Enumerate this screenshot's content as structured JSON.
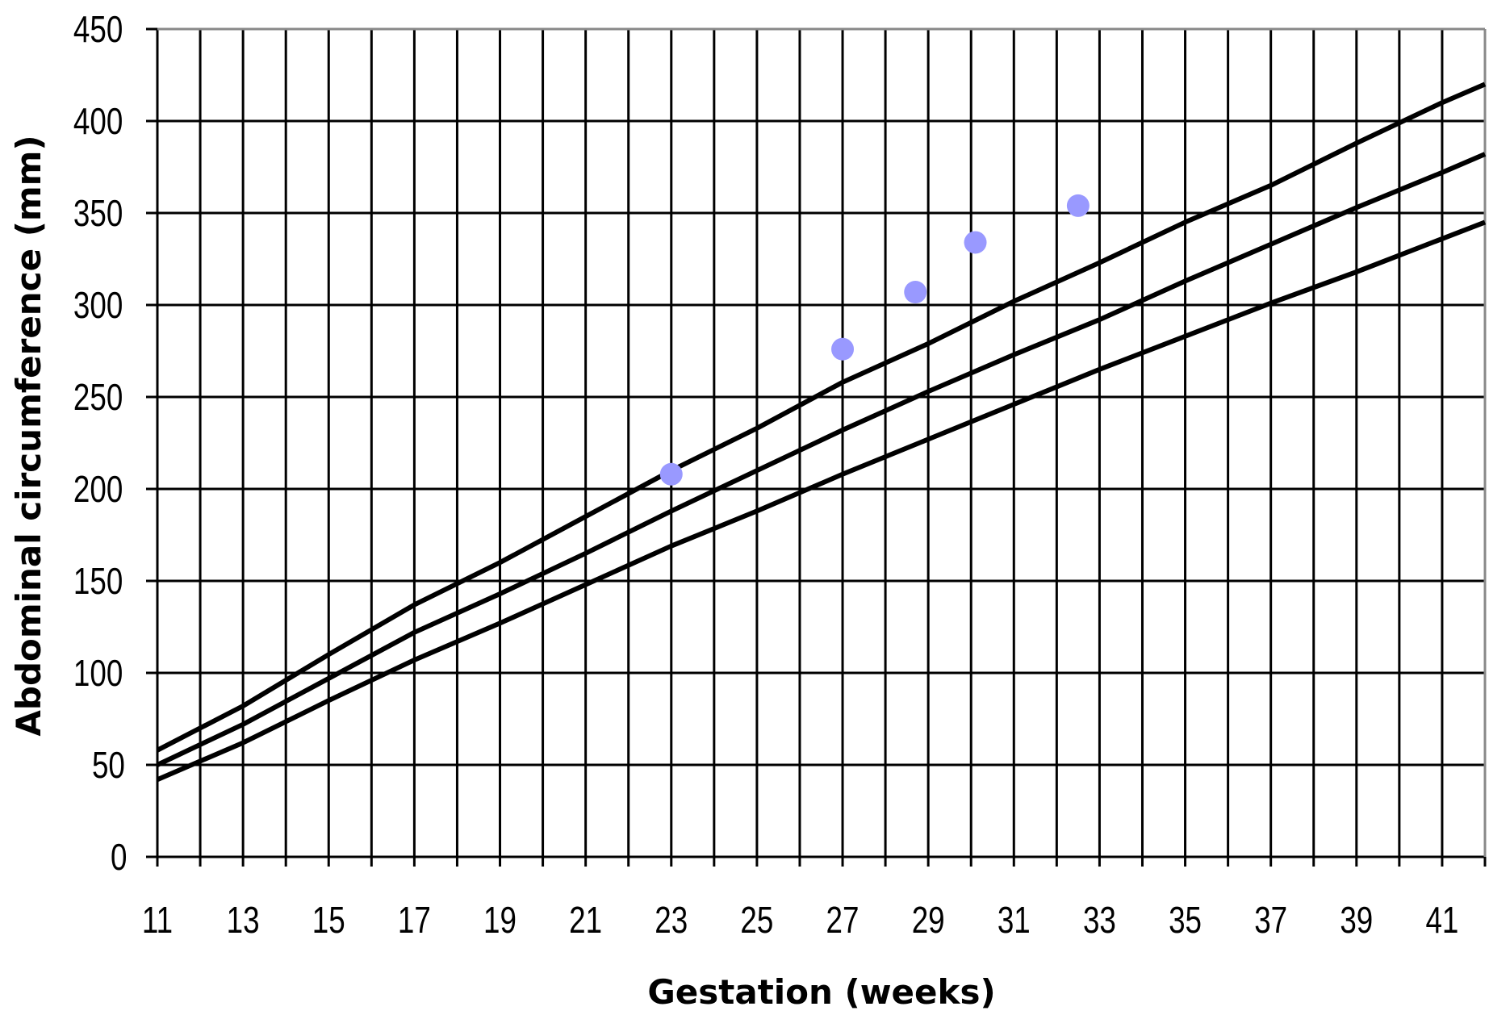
{
  "chart_data": {
    "type": "line",
    "xlabel": "Gestation (weeks)",
    "ylabel": "Abdominal circumference (mm)",
    "xlim": [
      11,
      42
    ],
    "ylim": [
      0,
      450
    ],
    "x_ticks": [
      11,
      13,
      15,
      17,
      19,
      21,
      23,
      25,
      27,
      29,
      31,
      33,
      35,
      37,
      39,
      41
    ],
    "y_ticks": [
      0,
      50,
      100,
      150,
      200,
      250,
      300,
      350,
      400,
      450
    ],
    "grid": true,
    "legend": "none",
    "series": [
      {
        "kind": "line",
        "color": "#000000",
        "points": [
          [
            11,
            58
          ],
          [
            13,
            82
          ],
          [
            15,
            110
          ],
          [
            17,
            137
          ],
          [
            19,
            160
          ],
          [
            21,
            185
          ],
          [
            23,
            210
          ],
          [
            25,
            233
          ],
          [
            27,
            258
          ],
          [
            29,
            279
          ],
          [
            31,
            302
          ],
          [
            33,
            323
          ],
          [
            35,
            345
          ],
          [
            37,
            365
          ],
          [
            39,
            388
          ],
          [
            41,
            410
          ],
          [
            42,
            420
          ]
        ]
      },
      {
        "kind": "line",
        "color": "#000000",
        "points": [
          [
            11,
            50
          ],
          [
            13,
            72
          ],
          [
            15,
            97
          ],
          [
            17,
            122
          ],
          [
            19,
            143
          ],
          [
            21,
            165
          ],
          [
            23,
            188
          ],
          [
            25,
            210
          ],
          [
            27,
            232
          ],
          [
            29,
            253
          ],
          [
            31,
            273
          ],
          [
            33,
            292
          ],
          [
            35,
            313
          ],
          [
            37,
            333
          ],
          [
            39,
            353
          ],
          [
            41,
            372
          ],
          [
            42,
            382
          ]
        ]
      },
      {
        "kind": "line",
        "color": "#000000",
        "points": [
          [
            11,
            42
          ],
          [
            13,
            62
          ],
          [
            15,
            85
          ],
          [
            17,
            107
          ],
          [
            19,
            127
          ],
          [
            21,
            148
          ],
          [
            23,
            169
          ],
          [
            25,
            188
          ],
          [
            27,
            208
          ],
          [
            29,
            227
          ],
          [
            31,
            246
          ],
          [
            33,
            265
          ],
          [
            35,
            283
          ],
          [
            37,
            301
          ],
          [
            39,
            318
          ],
          [
            41,
            336
          ],
          [
            42,
            345
          ]
        ]
      },
      {
        "kind": "scatter",
        "color": "#9999ff",
        "points": [
          [
            23,
            208
          ],
          [
            27,
            276
          ],
          [
            28.7,
            307
          ],
          [
            30.1,
            334
          ],
          [
            32.5,
            354
          ]
        ]
      }
    ]
  }
}
